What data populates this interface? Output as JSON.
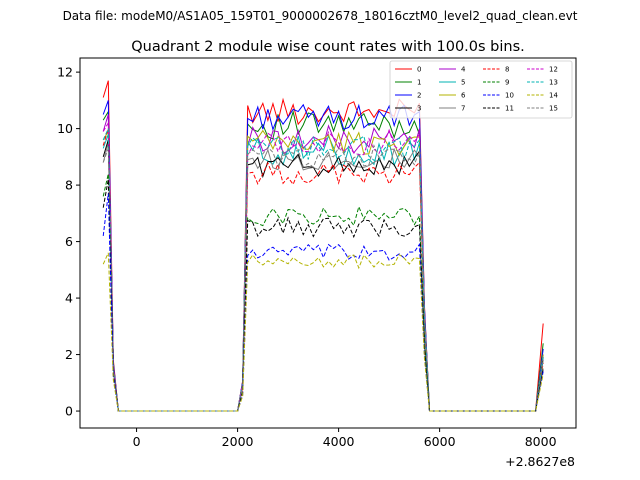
{
  "suptitle": "Data file: modeM0/AS1A05_159T01_9000002678_18016cztM0_level2_quad_clean.evt",
  "chart_data": {
    "type": "line",
    "title": "Quadrant 2 module wise count rates with 100.0s bins.",
    "xlabel": "",
    "ylabel": "",
    "x_offset_label": "+2.8627e8",
    "xlim": [
      -1120,
      8700
    ],
    "ylim": [
      -0.6,
      12.5
    ],
    "xticks": [
      0,
      2000,
      4000,
      6000,
      8000
    ],
    "xtick_labels": [
      "0",
      "2000",
      "4000",
      "6000",
      "8000"
    ],
    "yticks": [
      0,
      2,
      4,
      6,
      8,
      10,
      12
    ],
    "ytick_labels": [
      "0",
      "2",
      "4",
      "6",
      "8",
      "10",
      "12"
    ],
    "legend_position": "upper right",
    "legend_columns": 4,
    "grid": false,
    "gap1": [
      -250,
      2000
    ],
    "gap2": [
      5800,
      7950
    ],
    "series": [
      {
        "name": "0",
        "color": "#ff0000",
        "dash": "solid",
        "start": [
          11.1,
          11.7,
          1.8
        ],
        "plateau": 10.6,
        "amp": 0.45,
        "end": [
          10.9,
          3.1
        ]
      },
      {
        "name": "1",
        "color": "#008000",
        "dash": "solid",
        "start": [
          10.3,
          10.6,
          1.7
        ],
        "plateau": 10.1,
        "amp": 0.5,
        "end": [
          9.8,
          2.4
        ]
      },
      {
        "name": "2",
        "color": "#0000ff",
        "dash": "solid",
        "start": [
          10.5,
          11.0,
          1.7
        ],
        "plateau": 10.4,
        "amp": 0.45,
        "end": [
          10.6,
          2.2
        ]
      },
      {
        "name": "4",
        "color": "#aa00cc",
        "dash": "solid",
        "start": [
          9.9,
          10.5,
          1.6
        ],
        "plateau": 9.6,
        "amp": 0.5,
        "end": [
          10.0,
          2.0
        ]
      },
      {
        "name": "5",
        "color": "#00b3b3",
        "dash": "solid",
        "start": [
          9.3,
          9.8,
          1.5
        ],
        "plateau": 9.2,
        "amp": 0.55,
        "end": [
          9.5,
          2.0
        ]
      },
      {
        "name": "6",
        "color": "#b3b300",
        "dash": "solid",
        "start": [
          9.6,
          9.9,
          1.5
        ],
        "plateau": 9.5,
        "amp": 0.45,
        "end": [
          9.7,
          2.0
        ]
      },
      {
        "name": "7",
        "color": "#808080",
        "dash": "solid",
        "start": [
          8.8,
          9.5,
          1.5
        ],
        "plateau": 8.9,
        "amp": 0.4,
        "end": [
          9.0,
          1.8
        ]
      },
      {
        "name": "3",
        "color": "#000000",
        "dash": "solid",
        "start": [
          9.0,
          9.6,
          1.5
        ],
        "plateau": 8.7,
        "amp": 0.4,
        "end": [
          9.2,
          1.9
        ]
      },
      {
        "name": "8",
        "color": "#ff0000",
        "dash": "dashed",
        "start": [
          9.4,
          10.0,
          1.5
        ],
        "plateau": 8.4,
        "amp": 0.4,
        "end": [
          8.8,
          1.7
        ]
      },
      {
        "name": "12",
        "color": "#cc00cc",
        "dash": "dashed",
        "start": [
          9.9,
          10.2,
          1.5
        ],
        "plateau": 9.5,
        "amp": 0.45,
        "end": [
          9.8,
          1.9
        ]
      },
      {
        "name": "13",
        "color": "#00b3b3",
        "dash": "dashed",
        "start": [
          9.6,
          10.0,
          1.5
        ],
        "plateau": 9.3,
        "amp": 0.45,
        "end": [
          9.6,
          1.9
        ]
      },
      {
        "name": "15",
        "color": "#808080",
        "dash": "dashed",
        "start": [
          8.8,
          9.3,
          1.5
        ],
        "plateau": 9.0,
        "amp": 0.4,
        "end": [
          9.2,
          1.8
        ]
      },
      {
        "name": "9",
        "color": "#008000",
        "dash": "dashed",
        "start": [
          7.6,
          8.4,
          1.3
        ],
        "plateau": 6.9,
        "amp": 0.35,
        "end": [
          6.9,
          1.5
        ]
      },
      {
        "name": "11",
        "color": "#000000",
        "dash": "dashed",
        "start": [
          7.2,
          8.2,
          1.3
        ],
        "plateau": 6.5,
        "amp": 0.35,
        "end": [
          6.6,
          1.5
        ]
      },
      {
        "name": "10",
        "color": "#0000ff",
        "dash": "dashed",
        "start": [
          6.2,
          7.7,
          1.2
        ],
        "plateau": 5.6,
        "amp": 0.3,
        "end": [
          5.9,
          1.4
        ]
      },
      {
        "name": "14",
        "color": "#b3b300",
        "dash": "dashed",
        "start": [
          5.2,
          5.6,
          1.1
        ],
        "plateau": 5.3,
        "amp": 0.25,
        "end": [
          5.4,
          1.3
        ]
      }
    ],
    "legend_order": [
      "0",
      "1",
      "2",
      "3",
      "4",
      "5",
      "6",
      "7",
      "8",
      "9",
      "10",
      "11",
      "12",
      "13",
      "14",
      "15"
    ]
  }
}
